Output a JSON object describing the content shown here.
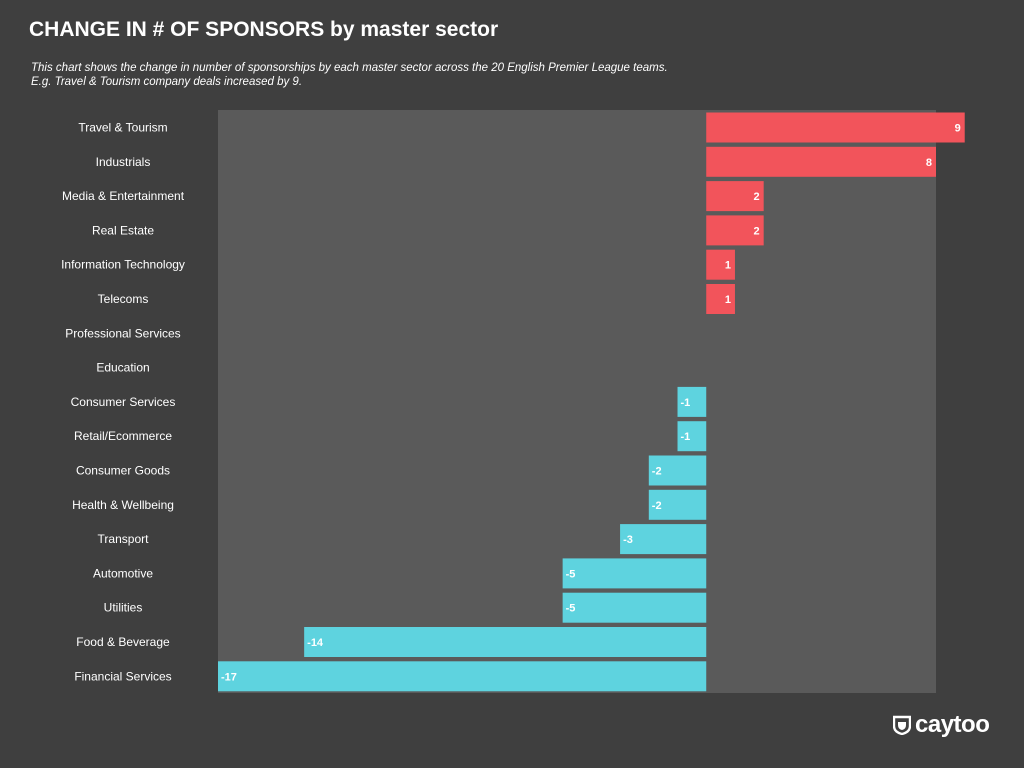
{
  "title": "CHANGE IN # OF SPONSORS by master sector",
  "subtitle": {
    "line1": "This chart shows the change in number of sponsorships by each master sector across the 20 English Premier League teams.",
    "line2": "E.g. Travel & Tourism company deals increased by 9."
  },
  "brand": {
    "name": "caytoo",
    "icon": "caytoo-shield-icon"
  },
  "colors": {
    "background": "#3f3f3f",
    "plot_area": "#5a5a5a",
    "positive": "#f2545b",
    "negative": "#5ed3df",
    "text": "#ffffff"
  },
  "chart_data": {
    "type": "bar",
    "orientation": "horizontal",
    "categories": [
      "Travel & Tourism",
      "Industrials",
      "Media & Entertainment",
      "Real Estate",
      "Information Technology",
      "Telecoms",
      "Professional Services",
      "Education",
      "Consumer Services",
      "Retail/Ecommerce",
      "Consumer Goods",
      "Health & Wellbeing",
      "Transport",
      "Automotive",
      "Utilities",
      "Food & Beverage",
      "Financial Services"
    ],
    "values": [
      9,
      8,
      2,
      2,
      1,
      1,
      0,
      0,
      -1,
      -1,
      -2,
      -2,
      -3,
      -5,
      -5,
      -14,
      -17
    ],
    "data_labels": [
      "9",
      "8",
      "2",
      "2",
      "1",
      "1",
      "",
      "",
      "-1",
      "-1",
      "-2",
      "-2",
      "-3",
      "-5",
      "-5",
      "-14",
      "-17"
    ],
    "xlim": [
      -17,
      8
    ],
    "grid": false,
    "legend": "none"
  }
}
